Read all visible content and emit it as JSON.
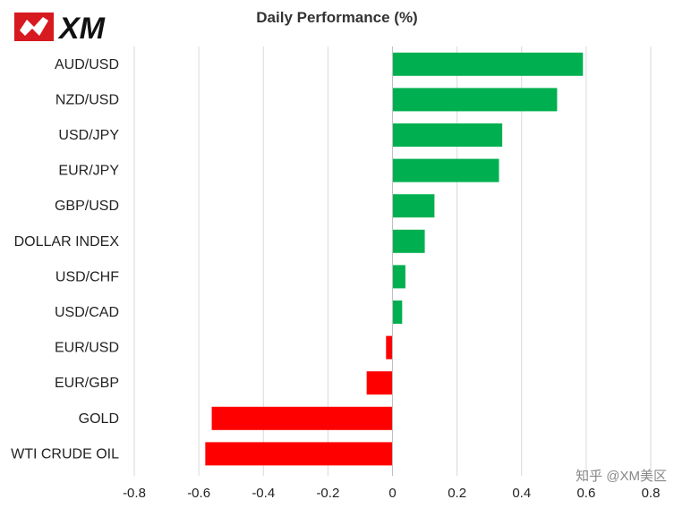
{
  "logo": {
    "text": "XM",
    "icon": "xm-bull-icon",
    "brand_color": "#d71920"
  },
  "title": "Daily Performance (%)",
  "watermark": "知乎 @XM美区",
  "colors": {
    "positive": "#00b050",
    "negative": "#ff0000",
    "grid": "#d9d9d9"
  },
  "chart_data": {
    "type": "bar",
    "orientation": "horizontal",
    "title": "Daily Performance (%)",
    "categories": [
      "AUD/USD",
      "NZD/USD",
      "USD/JPY",
      "EUR/JPY",
      "GBP/USD",
      "DOLLAR INDEX",
      "USD/CHF",
      "USD/CAD",
      "EUR/USD",
      "EUR/GBP",
      "GOLD",
      "WTI CRUDE OIL"
    ],
    "values": [
      0.59,
      0.51,
      0.34,
      0.33,
      0.13,
      0.1,
      0.04,
      0.03,
      -0.02,
      -0.08,
      -0.56,
      -0.58
    ],
    "xlim": [
      -0.8,
      0.8
    ],
    "xticks": [
      "-0.8",
      "-0.6",
      "-0.4",
      "-0.2",
      "0",
      "0.2",
      "0.4",
      "0.6",
      "0.8"
    ],
    "grid": true,
    "legend": false
  }
}
